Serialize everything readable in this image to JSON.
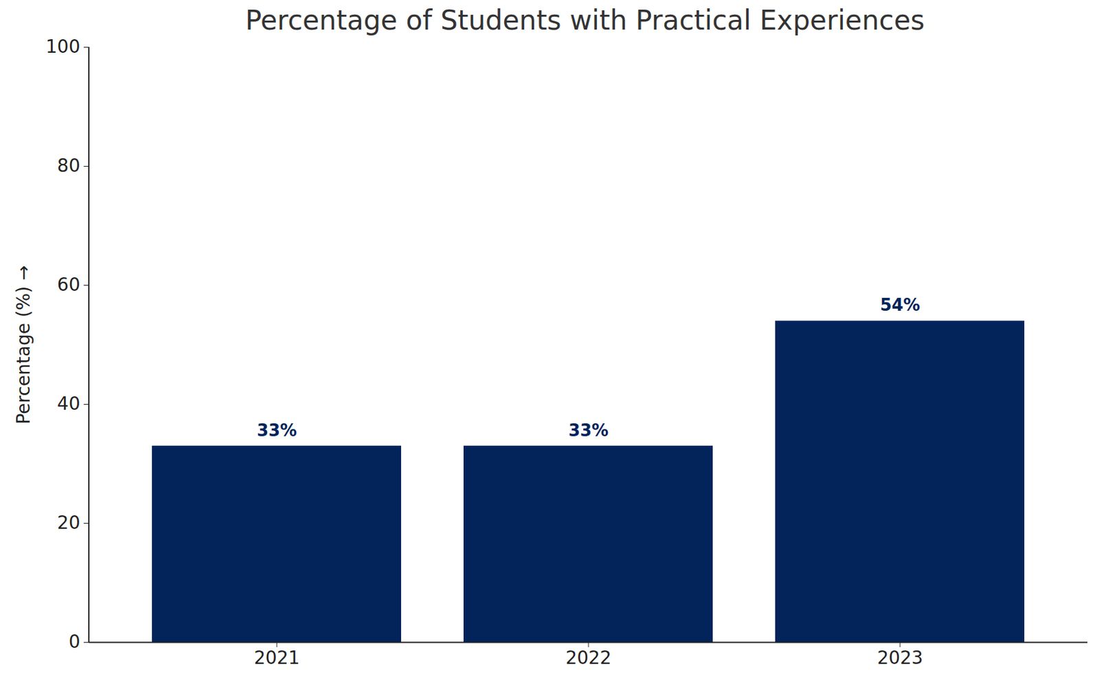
{
  "chart_data": {
    "type": "bar",
    "title": "Percentage of Students with Practical Experiences",
    "ylabel": "Percentage (%)",
    "categories": [
      "2021",
      "2022",
      "2023"
    ],
    "values": [
      33,
      33,
      54
    ],
    "value_labels": [
      "33%",
      "33%",
      "54%"
    ],
    "data_labels": true,
    "color": "#03245a",
    "ylim": [
      0,
      100
    ],
    "yticks": [
      0,
      20,
      40,
      60,
      80,
      100
    ],
    "grid": false
  }
}
